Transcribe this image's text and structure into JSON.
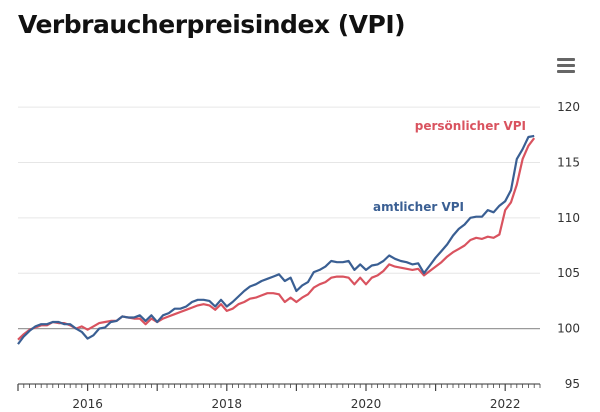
{
  "header": {
    "title": "Verbraucherpreisindex (VPI)"
  },
  "toolbar": {
    "menu_icon": "hamburger-menu-icon"
  },
  "chart_data": {
    "type": "line",
    "title": "Verbraucherpreisindex (VPI)",
    "xlabel": "",
    "ylabel": "",
    "x_range": [
      "2015-01",
      "2022-07"
    ],
    "ylim": [
      95,
      121
    ],
    "y_ticks": [
      95,
      100,
      105,
      110,
      115,
      120
    ],
    "x_ticks": [
      "2016",
      "2018",
      "2020",
      "2022"
    ],
    "baseline": 100,
    "grid": true,
    "series": [
      {
        "name": "amtlicher VPI",
        "color": "#3a5f93",
        "x": [
          "2015-01",
          "2015-02",
          "2015-03",
          "2015-04",
          "2015-05",
          "2015-06",
          "2015-07",
          "2015-08",
          "2015-09",
          "2015-10",
          "2015-11",
          "2015-12",
          "2016-01",
          "2016-02",
          "2016-03",
          "2016-04",
          "2016-05",
          "2016-06",
          "2016-07",
          "2016-08",
          "2016-09",
          "2016-10",
          "2016-11",
          "2016-12",
          "2017-01",
          "2017-02",
          "2017-03",
          "2017-04",
          "2017-05",
          "2017-06",
          "2017-07",
          "2017-08",
          "2017-09",
          "2017-10",
          "2017-11",
          "2017-12",
          "2018-01",
          "2018-02",
          "2018-03",
          "2018-04",
          "2018-05",
          "2018-06",
          "2018-07",
          "2018-08",
          "2018-09",
          "2018-10",
          "2018-11",
          "2018-12",
          "2019-01",
          "2019-02",
          "2019-03",
          "2019-04",
          "2019-05",
          "2019-06",
          "2019-07",
          "2019-08",
          "2019-09",
          "2019-10",
          "2019-11",
          "2019-12",
          "2020-01",
          "2020-02",
          "2020-03",
          "2020-04",
          "2020-05",
          "2020-06",
          "2020-07",
          "2020-08",
          "2020-09",
          "2020-10",
          "2020-11",
          "2020-12",
          "2021-01",
          "2021-02",
          "2021-03",
          "2021-04",
          "2021-05",
          "2021-06",
          "2021-07",
          "2021-08",
          "2021-09",
          "2021-10",
          "2021-11",
          "2021-12",
          "2022-01",
          "2022-02",
          "2022-03",
          "2022-04",
          "2022-05",
          "2022-06"
        ],
        "values": [
          98.6,
          99.3,
          99.8,
          100.2,
          100.4,
          100.4,
          100.6,
          100.6,
          100.4,
          100.4,
          100.0,
          99.7,
          99.1,
          99.4,
          100.0,
          100.1,
          100.6,
          100.7,
          101.1,
          101.0,
          101.0,
          101.2,
          100.7,
          101.2,
          100.6,
          101.2,
          101.4,
          101.8,
          101.8,
          102.0,
          102.4,
          102.6,
          102.6,
          102.5,
          102.0,
          102.6,
          102.0,
          102.4,
          102.9,
          103.4,
          103.8,
          104.0,
          104.3,
          104.5,
          104.7,
          104.9,
          104.3,
          104.6,
          103.4,
          103.9,
          104.2,
          105.1,
          105.3,
          105.6,
          106.1,
          106.0,
          106.0,
          106.1,
          105.3,
          105.8,
          105.3,
          105.7,
          105.8,
          106.1,
          106.6,
          106.3,
          106.1,
          106.0,
          105.8,
          105.9,
          105.0,
          105.7,
          106.4,
          107.0,
          107.6,
          108.4,
          109.0,
          109.4,
          110.0,
          110.1,
          110.1,
          110.7,
          110.5,
          111.1,
          111.5,
          112.5,
          115.3,
          116.2,
          117.3,
          117.4
        ]
      },
      {
        "name": "persönlicher VPI",
        "color": "#d9535f",
        "x": [
          "2015-01",
          "2015-02",
          "2015-03",
          "2015-04",
          "2015-05",
          "2015-06",
          "2015-07",
          "2015-08",
          "2015-09",
          "2015-10",
          "2015-11",
          "2015-12",
          "2016-01",
          "2016-02",
          "2016-03",
          "2016-04",
          "2016-05",
          "2016-06",
          "2016-07",
          "2016-08",
          "2016-09",
          "2016-10",
          "2016-11",
          "2016-12",
          "2017-01",
          "2017-02",
          "2017-03",
          "2017-04",
          "2017-05",
          "2017-06",
          "2017-07",
          "2017-08",
          "2017-09",
          "2017-10",
          "2017-11",
          "2017-12",
          "2018-01",
          "2018-02",
          "2018-03",
          "2018-04",
          "2018-05",
          "2018-06",
          "2018-07",
          "2018-08",
          "2018-09",
          "2018-10",
          "2018-11",
          "2018-12",
          "2019-01",
          "2019-02",
          "2019-03",
          "2019-04",
          "2019-05",
          "2019-06",
          "2019-07",
          "2019-08",
          "2019-09",
          "2019-10",
          "2019-11",
          "2019-12",
          "2020-01",
          "2020-02",
          "2020-03",
          "2020-04",
          "2020-05",
          "2020-06",
          "2020-07",
          "2020-08",
          "2020-09",
          "2020-10",
          "2020-11",
          "2020-12",
          "2021-01",
          "2021-02",
          "2021-03",
          "2021-04",
          "2021-05",
          "2021-06",
          "2021-07",
          "2021-08",
          "2021-09",
          "2021-10",
          "2021-11",
          "2021-12",
          "2022-01",
          "2022-02",
          "2022-03",
          "2022-04",
          "2022-05",
          "2022-06"
        ],
        "values": [
          99.0,
          99.5,
          99.9,
          100.1,
          100.3,
          100.3,
          100.6,
          100.5,
          100.5,
          100.3,
          100.0,
          100.2,
          99.9,
          100.2,
          100.5,
          100.6,
          100.7,
          100.7,
          101.1,
          101.0,
          100.9,
          100.9,
          100.4,
          100.9,
          100.6,
          100.9,
          101.1,
          101.3,
          101.5,
          101.7,
          101.9,
          102.1,
          102.2,
          102.1,
          101.7,
          102.2,
          101.6,
          101.8,
          102.2,
          102.4,
          102.7,
          102.8,
          103.0,
          103.2,
          103.2,
          103.1,
          102.4,
          102.8,
          102.4,
          102.8,
          103.1,
          103.7,
          104.0,
          104.2,
          104.6,
          104.7,
          104.7,
          104.6,
          104.0,
          104.6,
          104.0,
          104.6,
          104.8,
          105.2,
          105.8,
          105.6,
          105.5,
          105.4,
          105.3,
          105.4,
          104.8,
          105.2,
          105.6,
          106.0,
          106.5,
          106.9,
          107.2,
          107.5,
          108.0,
          108.2,
          108.1,
          108.3,
          108.2,
          108.5,
          110.7,
          111.4,
          113.0,
          115.3,
          116.5,
          117.2
        ]
      }
    ],
    "annotations": [
      {
        "series": "persönlicher VPI",
        "text": "persönlicher VPI"
      },
      {
        "series": "amtlicher VPI",
        "text": "amtlicher VPI"
      }
    ]
  }
}
